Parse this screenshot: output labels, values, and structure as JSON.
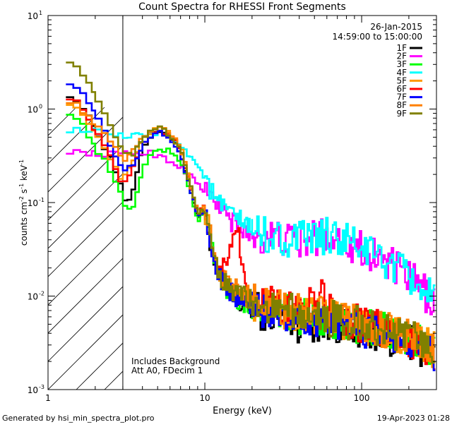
{
  "chart_data": {
    "type": "line",
    "title": "Count Spectra for RHESSI Front Segments",
    "xlabel": "Energy (keV)",
    "ylabel_main": "counts cm",
    "ylabel_exp1": "-2",
    "ylabel_mid": " s",
    "ylabel_exp2": "-1",
    "ylabel_end": " keV",
    "ylabel_exp3": "-1",
    "xscale": "log",
    "yscale": "log",
    "xlim": [
      1,
      300
    ],
    "ylim": [
      0.001,
      10
    ],
    "x_ticks": [
      {
        "value": 1,
        "label": "1"
      },
      {
        "value": 10,
        "label": "10"
      },
      {
        "value": 100,
        "label": "100"
      }
    ],
    "y_ticks": [
      {
        "value": 0.001,
        "base": "10",
        "exp": "-3"
      },
      {
        "value": 0.01,
        "base": "10",
        "exp": "-2"
      },
      {
        "value": 0.1,
        "base": "10",
        "exp": "-1"
      },
      {
        "value": 1,
        "base": "10",
        "exp": "0"
      },
      {
        "value": 10,
        "base": "10",
        "exp": "1"
      }
    ],
    "excluded_region": [
      1,
      3
    ],
    "date": "26-Jan-2015",
    "time_range": "14:59:00 to 15:00:00",
    "annotations": [
      "Includes Background",
      "Att A0, FDecim 1"
    ],
    "legend_position": "top-right",
    "series": [
      {
        "name": "1F",
        "color": "#000000",
        "points": [
          [
            1.3,
            1.55
          ],
          [
            1.6,
            1.15
          ],
          [
            2.0,
            0.62
          ],
          [
            2.5,
            0.3
          ],
          [
            3.0,
            0.14
          ],
          [
            3.2,
            0.085
          ],
          [
            3.5,
            0.14
          ],
          [
            4.0,
            0.36
          ],
          [
            4.6,
            0.55
          ],
          [
            5.2,
            0.6
          ],
          [
            6.0,
            0.5
          ],
          [
            7.0,
            0.35
          ],
          [
            8.0,
            0.15
          ],
          [
            9.0,
            0.07
          ],
          [
            10,
            0.08
          ],
          [
            11,
            0.035
          ],
          [
            12,
            0.015
          ],
          [
            14,
            0.011
          ],
          [
            17,
            0.008
          ],
          [
            22,
            0.007
          ],
          [
            30,
            0.006
          ],
          [
            40,
            0.005
          ],
          [
            55,
            0.005
          ],
          [
            70,
            0.0048
          ],
          [
            100,
            0.0043
          ],
          [
            140,
            0.0038
          ],
          [
            180,
            0.0033
          ],
          [
            230,
            0.0029
          ],
          [
            290,
            0.0023
          ]
        ]
      },
      {
        "name": "2F",
        "color": "#ff00ff",
        "points": [
          [
            1.3,
            0.36
          ],
          [
            1.7,
            0.34
          ],
          [
            2.2,
            0.33
          ],
          [
            2.8,
            0.33
          ],
          [
            3.5,
            0.34
          ],
          [
            4.5,
            0.34
          ],
          [
            5.5,
            0.3
          ],
          [
            6.5,
            0.26
          ],
          [
            8.0,
            0.2
          ],
          [
            10,
            0.13
          ],
          [
            12,
            0.1
          ],
          [
            15,
            0.06
          ],
          [
            20,
            0.045
          ],
          [
            28,
            0.042
          ],
          [
            38,
            0.038
          ],
          [
            48,
            0.04
          ],
          [
            58,
            0.046
          ],
          [
            70,
            0.042
          ],
          [
            85,
            0.037
          ],
          [
            100,
            0.032
          ],
          [
            130,
            0.026
          ],
          [
            170,
            0.019
          ],
          [
            210,
            0.015
          ],
          [
            250,
            0.011
          ],
          [
            290,
            0.009
          ]
        ]
      },
      {
        "name": "3F",
        "color": "#00ff00",
        "points": [
          [
            1.3,
            1.0
          ],
          [
            1.6,
            0.75
          ],
          [
            2.0,
            0.4
          ],
          [
            2.5,
            0.22
          ],
          [
            3.0,
            0.11
          ],
          [
            3.2,
            0.075
          ],
          [
            3.5,
            0.095
          ],
          [
            4.0,
            0.22
          ],
          [
            4.6,
            0.34
          ],
          [
            5.2,
            0.38
          ],
          [
            6.0,
            0.35
          ],
          [
            7.0,
            0.28
          ],
          [
            8.0,
            0.14
          ],
          [
            9.0,
            0.065
          ],
          [
            10,
            0.075
          ],
          [
            11,
            0.035
          ],
          [
            12,
            0.016
          ],
          [
            14,
            0.012
          ],
          [
            17,
            0.009
          ],
          [
            22,
            0.008
          ],
          [
            30,
            0.007
          ],
          [
            40,
            0.006
          ],
          [
            55,
            0.0058
          ],
          [
            70,
            0.0055
          ],
          [
            100,
            0.0048
          ],
          [
            140,
            0.0042
          ],
          [
            180,
            0.0036
          ],
          [
            230,
            0.0032
          ],
          [
            290,
            0.0026
          ]
        ]
      },
      {
        "name": "4F",
        "color": "#00ffff",
        "points": [
          [
            1.3,
            0.6
          ],
          [
            1.7,
            0.6
          ],
          [
            2.2,
            0.56
          ],
          [
            2.8,
            0.52
          ],
          [
            3.2,
            0.5
          ],
          [
            3.8,
            0.52
          ],
          [
            4.5,
            0.56
          ],
          [
            5.5,
            0.55
          ],
          [
            6.5,
            0.48
          ],
          [
            8.0,
            0.32
          ],
          [
            9.5,
            0.22
          ],
          [
            11,
            0.13
          ],
          [
            12,
            0.1
          ],
          [
            14,
            0.08
          ],
          [
            17,
            0.062
          ],
          [
            20,
            0.052
          ],
          [
            25,
            0.045
          ],
          [
            32,
            0.04
          ],
          [
            40,
            0.04
          ],
          [
            50,
            0.042
          ],
          [
            60,
            0.044
          ],
          [
            75,
            0.04
          ],
          [
            90,
            0.036
          ],
          [
            110,
            0.03
          ],
          [
            140,
            0.024
          ],
          [
            180,
            0.018
          ],
          [
            220,
            0.014
          ],
          [
            260,
            0.011
          ],
          [
            290,
            0.009
          ]
        ]
      },
      {
        "name": "5F",
        "color": "#ff9900",
        "points": [
          [
            1.3,
            1.25
          ],
          [
            1.6,
            1.0
          ],
          [
            2.0,
            0.55
          ],
          [
            2.5,
            0.28
          ],
          [
            3.0,
            0.17
          ],
          [
            3.5,
            0.27
          ],
          [
            4.0,
            0.45
          ],
          [
            4.6,
            0.6
          ],
          [
            5.2,
            0.65
          ],
          [
            6.0,
            0.55
          ],
          [
            7.0,
            0.4
          ],
          [
            8.0,
            0.17
          ],
          [
            9.0,
            0.08
          ],
          [
            10,
            0.085
          ],
          [
            11,
            0.04
          ],
          [
            12,
            0.018
          ],
          [
            14,
            0.013
          ],
          [
            17,
            0.01
          ],
          [
            22,
            0.008
          ],
          [
            30,
            0.007
          ],
          [
            40,
            0.0065
          ],
          [
            55,
            0.006
          ],
          [
            70,
            0.0055
          ],
          [
            100,
            0.0048
          ],
          [
            140,
            0.0042
          ],
          [
            180,
            0.0037
          ],
          [
            230,
            0.0033
          ],
          [
            290,
            0.0027
          ]
        ]
      },
      {
        "name": "6F",
        "color": "#ff0000",
        "points": [
          [
            1.3,
            1.45
          ],
          [
            1.6,
            1.1
          ],
          [
            2.0,
            0.6
          ],
          [
            2.5,
            0.3
          ],
          [
            3.0,
            0.15
          ],
          [
            3.5,
            0.24
          ],
          [
            4.0,
            0.42
          ],
          [
            4.6,
            0.58
          ],
          [
            5.2,
            0.62
          ],
          [
            6.0,
            0.52
          ],
          [
            7.0,
            0.37
          ],
          [
            8.0,
            0.16
          ],
          [
            9.0,
            0.075
          ],
          [
            10,
            0.09
          ],
          [
            11,
            0.04
          ],
          [
            12,
            0.019
          ],
          [
            14,
            0.02
          ],
          [
            16,
            0.065
          ],
          [
            18,
            0.012
          ],
          [
            22,
            0.009
          ],
          [
            30,
            0.008
          ],
          [
            40,
            0.0065
          ],
          [
            55,
            0.01
          ],
          [
            70,
            0.006
          ],
          [
            100,
            0.005
          ],
          [
            140,
            0.0043
          ],
          [
            180,
            0.0038
          ],
          [
            230,
            0.0032
          ],
          [
            290,
            0.0026
          ]
        ]
      },
      {
        "name": "7F",
        "color": "#0000ff",
        "points": [
          [
            1.3,
            2.1
          ],
          [
            1.6,
            1.6
          ],
          [
            2.0,
            0.9
          ],
          [
            2.5,
            0.42
          ],
          [
            3.0,
            0.22
          ],
          [
            3.5,
            0.25
          ],
          [
            4.0,
            0.4
          ],
          [
            4.6,
            0.52
          ],
          [
            5.2,
            0.57
          ],
          [
            6.0,
            0.48
          ],
          [
            7.0,
            0.34
          ],
          [
            8.0,
            0.15
          ],
          [
            9.0,
            0.07
          ],
          [
            10,
            0.08
          ],
          [
            11,
            0.036
          ],
          [
            12,
            0.016
          ],
          [
            14,
            0.012
          ],
          [
            17,
            0.009
          ],
          [
            22,
            0.0075
          ],
          [
            30,
            0.0065
          ],
          [
            40,
            0.006
          ],
          [
            55,
            0.0055
          ],
          [
            70,
            0.005
          ],
          [
            100,
            0.0045
          ],
          [
            140,
            0.004
          ],
          [
            180,
            0.0035
          ],
          [
            230,
            0.003
          ],
          [
            290,
            0.0024
          ]
        ]
      },
      {
        "name": "8F",
        "color": "#ff8000",
        "points": [
          [
            1.3,
            1.3
          ],
          [
            1.6,
            1.05
          ],
          [
            2.0,
            0.7
          ],
          [
            2.5,
            0.45
          ],
          [
            3.0,
            0.28
          ],
          [
            3.5,
            0.38
          ],
          [
            4.0,
            0.5
          ],
          [
            4.6,
            0.62
          ],
          [
            5.2,
            0.66
          ],
          [
            6.0,
            0.55
          ],
          [
            7.0,
            0.4
          ],
          [
            8.0,
            0.17
          ],
          [
            9.0,
            0.08
          ],
          [
            10,
            0.09
          ],
          [
            11,
            0.042
          ],
          [
            12,
            0.02
          ],
          [
            14,
            0.014
          ],
          [
            17,
            0.011
          ],
          [
            22,
            0.009
          ],
          [
            30,
            0.0075
          ],
          [
            40,
            0.007
          ],
          [
            55,
            0.0063
          ],
          [
            70,
            0.0058
          ],
          [
            100,
            0.005
          ],
          [
            140,
            0.0044
          ],
          [
            180,
            0.0039
          ],
          [
            230,
            0.0034
          ],
          [
            290,
            0.0028
          ]
        ]
      },
      {
        "name": "9F",
        "color": "#808000",
        "points": [
          [
            1.3,
            3.6
          ],
          [
            1.6,
            2.7
          ],
          [
            2.0,
            1.4
          ],
          [
            2.5,
            0.65
          ],
          [
            3.0,
            0.33
          ],
          [
            3.5,
            0.33
          ],
          [
            4.0,
            0.45
          ],
          [
            4.6,
            0.58
          ],
          [
            5.2,
            0.62
          ],
          [
            6.0,
            0.52
          ],
          [
            7.0,
            0.38
          ],
          [
            8.0,
            0.16
          ],
          [
            9.0,
            0.075
          ],
          [
            10,
            0.085
          ],
          [
            11,
            0.04
          ],
          [
            12,
            0.018
          ],
          [
            14,
            0.013
          ],
          [
            17,
            0.01
          ],
          [
            22,
            0.0085
          ],
          [
            30,
            0.0072
          ],
          [
            40,
            0.0066
          ],
          [
            55,
            0.006
          ],
          [
            70,
            0.0056
          ],
          [
            100,
            0.005
          ],
          [
            140,
            0.0044
          ],
          [
            180,
            0.0038
          ],
          [
            230,
            0.0033
          ],
          [
            290,
            0.0027
          ]
        ]
      }
    ]
  },
  "footer": {
    "left": "Generated by hsi_min_spectra_plot.pro",
    "right": "19-Apr-2023 01:28"
  }
}
